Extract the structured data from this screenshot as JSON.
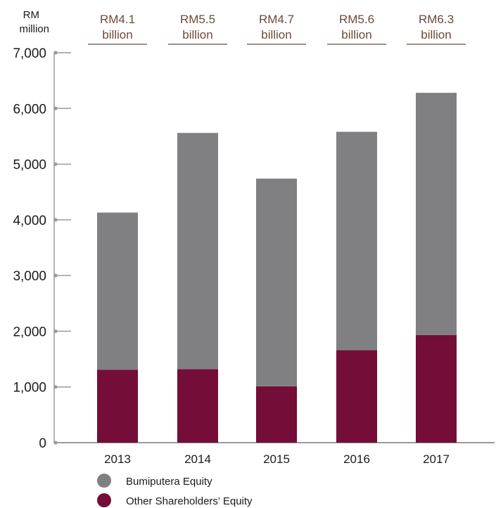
{
  "chart_data": {
    "type": "bar",
    "stacked": true,
    "unit_label": [
      "RM",
      "million"
    ],
    "categories": [
      "2013",
      "2014",
      "2015",
      "2016",
      "2017"
    ],
    "series": [
      {
        "name": "Other Shareholders’ Equity",
        "color": "#740d37",
        "values": [
          1310,
          1320,
          1010,
          1660,
          1930
        ]
      },
      {
        "name": "Bumiputera Equity",
        "color": "#808083",
        "values": [
          2820,
          4240,
          3730,
          3920,
          4350
        ]
      }
    ],
    "totals": [
      [
        "RM4.1",
        "billion"
      ],
      [
        "RM5.5",
        "billion"
      ],
      [
        "RM4.7",
        "billion"
      ],
      [
        "RM5.6",
        "billion"
      ],
      [
        "RM6.3",
        "billion"
      ]
    ],
    "yticks": [
      "0",
      "1,000",
      "2,000",
      "3,000",
      "4,000",
      "5,000",
      "6,000",
      "7,000"
    ],
    "ylim": [
      0,
      7000
    ],
    "grid": false,
    "legend": {
      "placement": "bottom",
      "items": [
        "Bumiputera Equity",
        "Other Shareholders’ Equity"
      ]
    }
  }
}
